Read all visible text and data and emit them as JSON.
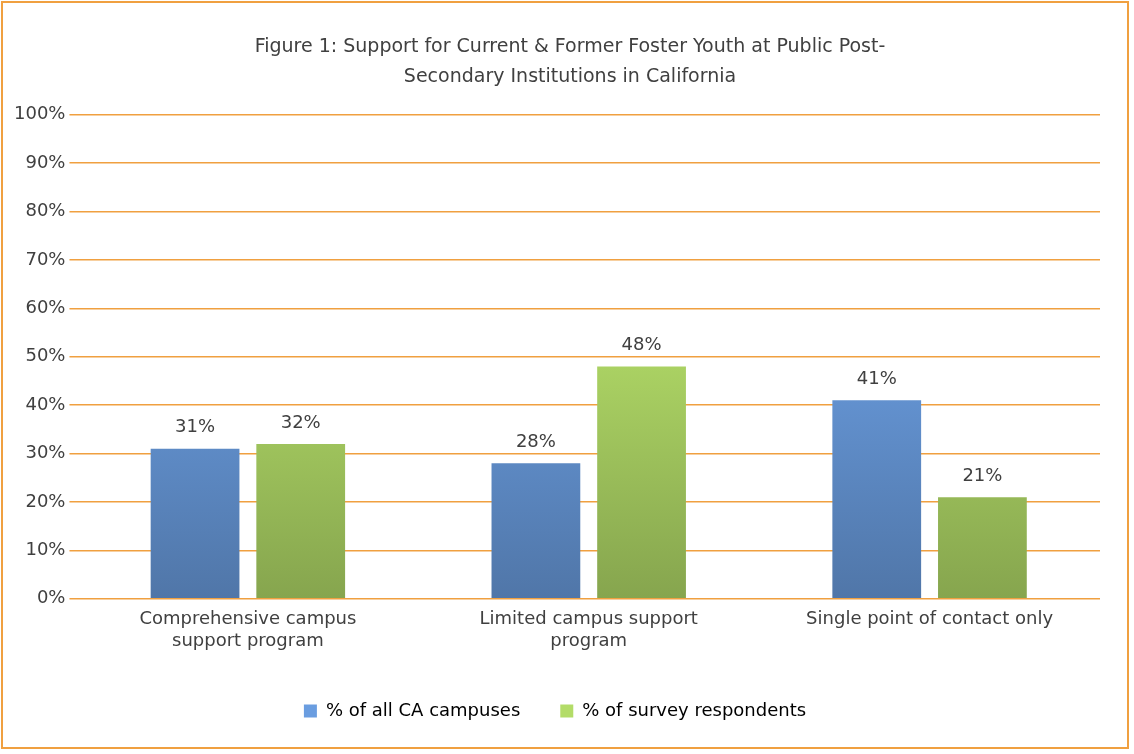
{
  "chart_data": {
    "type": "bar",
    "title": "Figure 1:  Support for Current & Former Foster Youth at Public Post-Secondary Institutions in California",
    "categories": [
      "Comprehensive campus support program",
      "Limited campus support program",
      "Single point of contact only"
    ],
    "series": [
      {
        "name": "% of all CA campuses",
        "color": "#6a9de0",
        "values": [
          31,
          28,
          41
        ]
      },
      {
        "name": "% of survey respondents",
        "color": "#b3dc68",
        "values": [
          32,
          48,
          21
        ]
      }
    ],
    "ylim": [
      0,
      100
    ],
    "yticks": [
      {
        "value": 0,
        "label": "0%"
      },
      {
        "value": 10,
        "label": "10%"
      },
      {
        "value": 20,
        "label": "20%"
      },
      {
        "value": 30,
        "label": "30%"
      },
      {
        "value": 40,
        "label": "40%"
      },
      {
        "value": 50,
        "label": "50%"
      },
      {
        "value": 60,
        "label": "60%"
      },
      {
        "value": 70,
        "label": "70%"
      },
      {
        "value": 80,
        "label": "80%"
      },
      {
        "value": 90,
        "label": "90%"
      },
      {
        "value": 100,
        "label": "100%"
      }
    ],
    "value_labels": [
      [
        "31%",
        "28%",
        "41%"
      ],
      [
        "32%",
        "48%",
        "21%"
      ]
    ],
    "grid": "y",
    "legend": "bottom"
  }
}
